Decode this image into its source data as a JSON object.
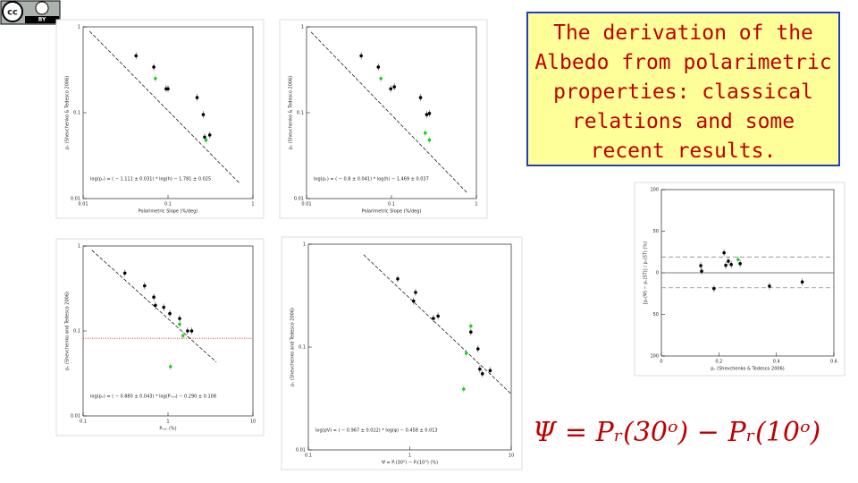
{
  "license_badge": {
    "cc": "cc",
    "by": "BY"
  },
  "title": "The derivation of the Albedo from polarimetric properties:  classical relations and some recent results.",
  "formula": "Ψ =  Pᵣ(30ᵒ) −  Pᵣ(10ᵒ)",
  "chart_data": [
    {
      "type": "scatter",
      "x_label": "Polarimetric Slope (%/deg)",
      "y_label": "pᵥ (Shevchenko & Tedesco 2006)",
      "xlog": true,
      "ylog": true,
      "xlim": [
        0.01,
        1
      ],
      "ylim": [
        0.01,
        1
      ],
      "xticks": [
        0.01,
        0.1,
        1
      ],
      "yticks": [
        0.01,
        0.1,
        1
      ],
      "series": [
        {
          "color": "#000000",
          "x": [
            0.042,
            0.068,
            0.095,
            0.1,
            0.22,
            0.26,
            0.27,
            0.31
          ],
          "values": [
            0.46,
            0.34,
            0.19,
            0.19,
            0.15,
            0.095,
            0.052,
            0.055
          ]
        },
        {
          "color": "#22cc22",
          "x": [
            0.071,
            0.28
          ],
          "values": [
            0.25,
            0.048
          ]
        }
      ],
      "fit_line": {
        "x": [
          0.0119,
          0.7
        ],
        "y": [
          0.89,
          0.015
        ]
      },
      "equation": "log(pᵥ) = ( − 1.111 ± 0.031) * log(h) − 1.781 ± 0.025"
    },
    {
      "type": "scatter",
      "x_label": "Polarimetric Slope (%/deg)",
      "y_label": "pᵥ (Shevchenko & Tedesco 2006)",
      "xlog": true,
      "ylog": true,
      "xlim": [
        0.01,
        1
      ],
      "ylim": [
        0.01,
        1
      ],
      "xticks": [
        0.01,
        0.1,
        1
      ],
      "yticks": [
        0.01,
        0.1,
        1
      ],
      "series": [
        {
          "color": "#000000",
          "x": [
            0.044,
            0.07,
            0.098,
            0.108,
            0.22,
            0.26,
            0.28
          ],
          "values": [
            0.46,
            0.34,
            0.19,
            0.2,
            0.15,
            0.095,
            0.098
          ]
        },
        {
          "color": "#22cc22",
          "x": [
            0.075,
            0.28,
            0.25
          ],
          "values": [
            0.25,
            0.048,
            0.058
          ]
        }
      ],
      "fit_line": {
        "x": [
          0.0113,
          0.77
        ],
        "y": [
          0.87,
          0.0118
        ]
      },
      "equation": "log(pᵥ) = ( − 0.8 ± 0.041) * log(h) − 1.469 ± 0.037"
    },
    {
      "type": "scatter",
      "x_label": "Pₘᵢₙ (%)",
      "y_label": "pᵥ (Shevchenko and Tedesco 2006)",
      "xlog": true,
      "ylog": true,
      "xlim": [
        0.1,
        10
      ],
      "ylim": [
        0.01,
        1
      ],
      "xticks": [
        0.1,
        1,
        10
      ],
      "yticks": [
        0.01,
        0.1,
        1
      ],
      "series": [
        {
          "color": "#000000",
          "x": [
            0.31,
            0.53,
            0.68,
            0.71,
            0.89,
            1.05,
            1.37,
            1.7,
            1.9
          ],
          "values": [
            0.48,
            0.34,
            0.25,
            0.2,
            0.19,
            0.16,
            0.14,
            0.1,
            0.1
          ]
        },
        {
          "color": "#22cc22",
          "x": [
            1.37,
            1.5,
            1.07
          ],
          "values": [
            0.12,
            0.088,
            0.038
          ]
        }
      ],
      "fit_line": {
        "x": [
          0.127,
          3.7
        ],
        "y": [
          0.89,
          0.043
        ]
      },
      "hlines": [
        {
          "value": 0.082,
          "color": "#dd2222",
          "style": "dotted"
        }
      ],
      "equation": "log(pᵥ) = ( − 0.880 ± 0.043) * log(Pₘᵢₙ) − 0.290 ± 0.108"
    },
    {
      "type": "scatter",
      "x_label": "Ψ = Pᵣ(30°) − Pᵣ(10°) (%)",
      "y_label": "pᵥ (Shevchenko and Tedesco 2006)",
      "xlog": true,
      "ylog": true,
      "xlim": [
        0.1,
        10
      ],
      "ylim": [
        0.01,
        1
      ],
      "xticks": [
        0.1,
        1,
        10
      ],
      "yticks": [
        0.01,
        0.1,
        1
      ],
      "series": [
        {
          "color": "#000000",
          "x": [
            0.76,
            1.14,
            1.09,
            1.71,
            1.9,
            4.0,
            4.7,
            4.9,
            5.2,
            6.2
          ],
          "values": [
            0.46,
            0.34,
            0.28,
            0.19,
            0.2,
            0.14,
            0.096,
            0.061,
            0.055,
            0.059
          ]
        },
        {
          "color": "#22cc22",
          "x": [
            4.0,
            3.6,
            3.4
          ],
          "values": [
            0.16,
            0.087,
            0.039
          ]
        }
      ],
      "fit_line": {
        "x": [
          0.35,
          10
        ],
        "y": [
          0.79,
          0.035
        ]
      },
      "equation": "log(pV) = ( − 0.967 ± 0.022) * log(ψ) − 0.458 ± 0.013"
    },
    {
      "type": "scatter",
      "x_label": "pᵥ (Shevchenko & Tedesco 2006)",
      "y_label": "[pᵥ(Ψ) − pᵥ(ST)] / pᵥ(ST) (%)",
      "xlog": false,
      "ylog": false,
      "xlim": [
        0,
        0.6
      ],
      "ylim": [
        -100,
        100
      ],
      "xticks": [
        0,
        0.2,
        0.4,
        0.6
      ],
      "yticks": [
        100,
        50,
        0,
        {
          "value": -50,
          "label": "50"
        },
        {
          "value": -100,
          "label": "100"
        }
      ],
      "series": [
        {
          "color": "#000000",
          "x": [
            0.137,
            0.14,
            0.183,
            0.218,
            0.224,
            0.233,
            0.243,
            0.274,
            0.376,
            0.49
          ],
          "values": [
            8.6,
            2,
            -19,
            24,
            9,
            14,
            10,
            11,
            -16,
            -11
          ]
        },
        {
          "color": "#22cc22",
          "x": [
            0.267
          ],
          "values": [
            16
          ]
        }
      ],
      "hlines": [
        {
          "value": 0,
          "color": "#555555",
          "style": "solid"
        },
        {
          "value": 19,
          "color": "#888888",
          "style": "dashed"
        },
        {
          "value": -18,
          "color": "#888888",
          "style": "dashed"
        }
      ]
    }
  ]
}
